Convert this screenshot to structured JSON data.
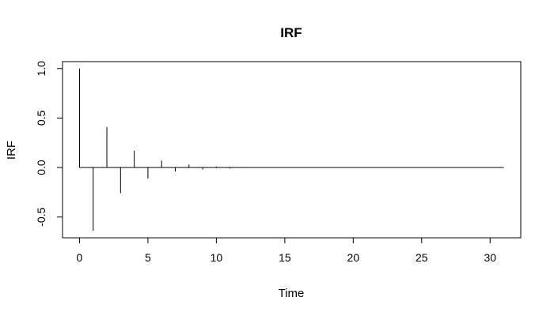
{
  "chart_data": {
    "type": "bar",
    "title": "IRF",
    "xlabel": "Time",
    "ylabel": "IRF",
    "xlim": [
      -1.24,
      32.24
    ],
    "ylim": [
      -0.71,
      1.07
    ],
    "x_ticks": [
      0,
      5,
      10,
      15,
      20,
      25,
      30
    ],
    "x_tick_labels": [
      "0",
      "5",
      "10",
      "15",
      "20",
      "25",
      "30"
    ],
    "y_ticks": [
      -0.5,
      0.0,
      0.5,
      1.0
    ],
    "y_tick_labels": [
      "-0.5",
      "0.0",
      "0.5",
      "1.0"
    ],
    "grid": false,
    "baseline": 0,
    "x": [
      0,
      1,
      2,
      3,
      4,
      5,
      6,
      7,
      8,
      9,
      10,
      11,
      12,
      13,
      14,
      15,
      16,
      17,
      18,
      19,
      20,
      21,
      22,
      23,
      24,
      25,
      26,
      27,
      28,
      29,
      30,
      31
    ],
    "values": [
      1.0,
      -0.64,
      0.41,
      -0.26,
      0.17,
      -0.11,
      0.07,
      -0.04,
      0.03,
      -0.02,
      0.01,
      -0.01,
      0.005,
      0,
      0,
      0,
      0,
      0,
      0,
      0,
      0,
      0,
      0,
      0,
      0,
      0,
      0,
      0,
      0,
      0,
      0,
      0
    ],
    "colors": {
      "line": "#000000",
      "frame": "#000000",
      "background": "#ffffff"
    }
  }
}
